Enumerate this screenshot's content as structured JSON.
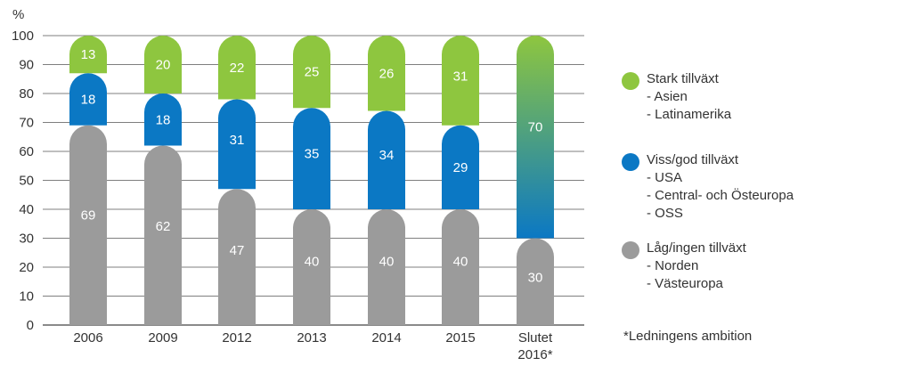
{
  "chart_data": {
    "type": "bar",
    "stacked": true,
    "ylabel": "%",
    "ylim": [
      0,
      100
    ],
    "yticks": [
      0,
      10,
      20,
      30,
      40,
      50,
      60,
      70,
      80,
      90,
      100
    ],
    "grid": true,
    "categories": [
      "2006",
      "2009",
      "2012",
      "2013",
      "2014",
      "2015",
      "Slutet 2016*"
    ],
    "series": [
      {
        "name": "Låg/ingen tillväxt",
        "color": "#9b9b9b",
        "values": [
          69,
          62,
          47,
          40,
          40,
          40,
          30
        ]
      },
      {
        "name": "Viss/god tillväxt",
        "color": "#0b78c4",
        "values": [
          18,
          18,
          31,
          35,
          34,
          29,
          null
        ]
      },
      {
        "name": "Stark tillväxt",
        "color": "#8ec63f",
        "values": [
          13,
          20,
          22,
          25,
          26,
          31,
          null
        ]
      }
    ],
    "combined_last": {
      "category": "Slutet 2016*",
      "value": 70,
      "gradient": [
        "#8ec63f",
        "#0b78c4"
      ]
    },
    "legend_placement": "right"
  },
  "legend": {
    "items": [
      {
        "title": "Stark tillväxt",
        "subs": [
          "- Asien",
          "- Latinamerika"
        ],
        "color": "#8ec63f"
      },
      {
        "title": "Viss/god tillväxt",
        "subs": [
          "- USA",
          "- Central- och Östeuropa",
          "- OSS"
        ],
        "color": "#0b78c4"
      },
      {
        "title": "Låg/ingen tillväxt",
        "subs": [
          "- Norden",
          "- Västeuropa"
        ],
        "color": "#9b9b9b"
      }
    ]
  },
  "footnote": "*Ledningens ambition"
}
